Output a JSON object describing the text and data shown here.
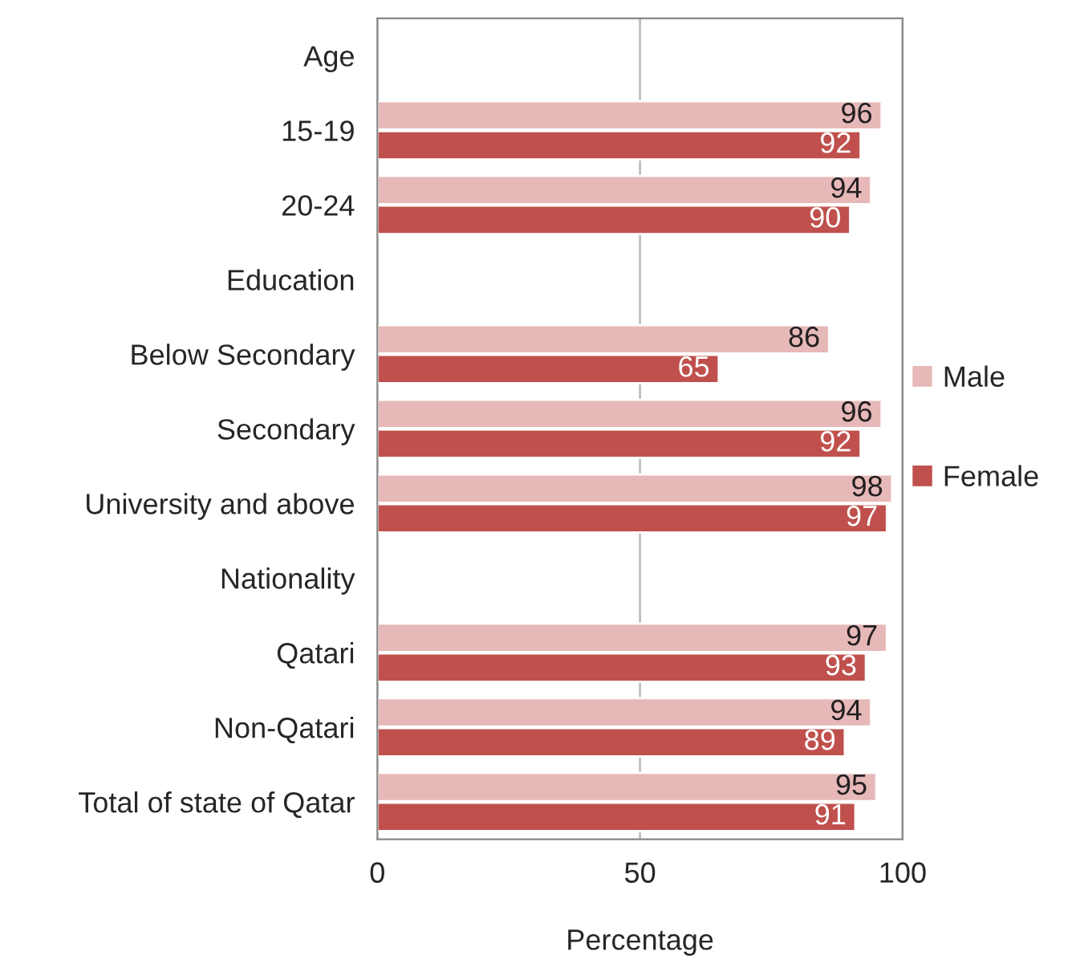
{
  "chart_data": {
    "type": "bar",
    "orientation": "horizontal",
    "xlabel": "Percentage",
    "categories": [
      "Age",
      "15-19",
      "20-24",
      "Education",
      "Below Secondary",
      "Secondary",
      "University and above",
      "Nationality",
      "Qatari",
      "Non-Qatari",
      "Total of state of Qatar"
    ],
    "series": [
      {
        "name": "Male",
        "color": "#e6b9b8",
        "values": [
          null,
          96,
          94,
          null,
          86,
          96,
          98,
          null,
          97,
          94,
          95
        ]
      },
      {
        "name": "Female",
        "color": "#c0504d",
        "values": [
          null,
          92,
          90,
          null,
          65,
          92,
          97,
          null,
          93,
          89,
          91
        ]
      }
    ],
    "xlim": [
      0,
      100
    ],
    "xticks": [
      0,
      50,
      100
    ],
    "grid": "x",
    "legend": "right",
    "data_labels": true
  }
}
